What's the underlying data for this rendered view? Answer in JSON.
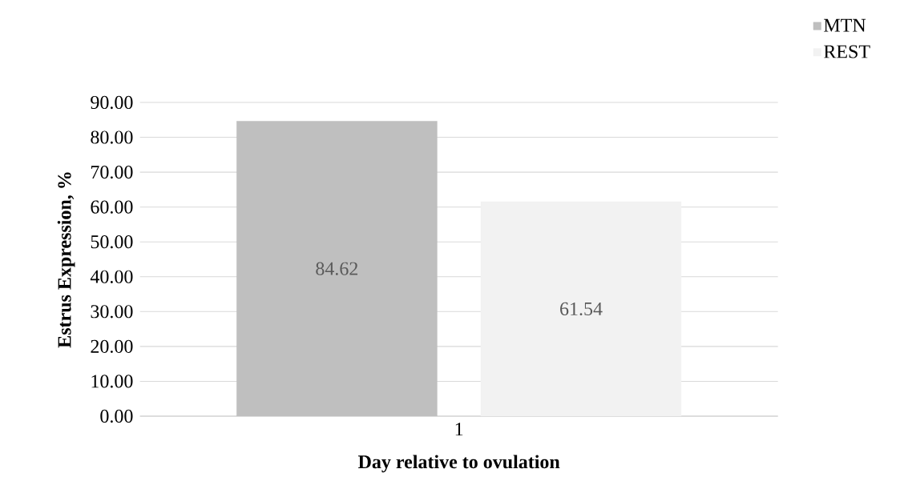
{
  "chart_data": {
    "type": "bar",
    "xlabel": "Day relative to ovulation",
    "ylabel": "Estrus Expression, %",
    "categories": [
      "1"
    ],
    "series": [
      {
        "name": "MTN",
        "color": "#bfbfbf",
        "values": [
          84.62
        ]
      },
      {
        "name": "REST",
        "color": "#f2f2f2",
        "values": [
          61.54
        ]
      }
    ],
    "ylim": [
      0,
      90
    ],
    "yticks": [
      {
        "value": 0,
        "label": "0.00"
      },
      {
        "value": 10,
        "label": "10.00"
      },
      {
        "value": 20,
        "label": "20.00"
      },
      {
        "value": 30,
        "label": "30.00"
      },
      {
        "value": 40,
        "label": "40.00"
      },
      {
        "value": 50,
        "label": "50.00"
      },
      {
        "value": 60,
        "label": "60.00"
      },
      {
        "value": 70,
        "label": "70.00"
      },
      {
        "value": 80,
        "label": "80.00"
      },
      {
        "value": 90,
        "label": "90.00"
      }
    ],
    "grid": "y",
    "legend": "top right",
    "data_labels": true
  }
}
